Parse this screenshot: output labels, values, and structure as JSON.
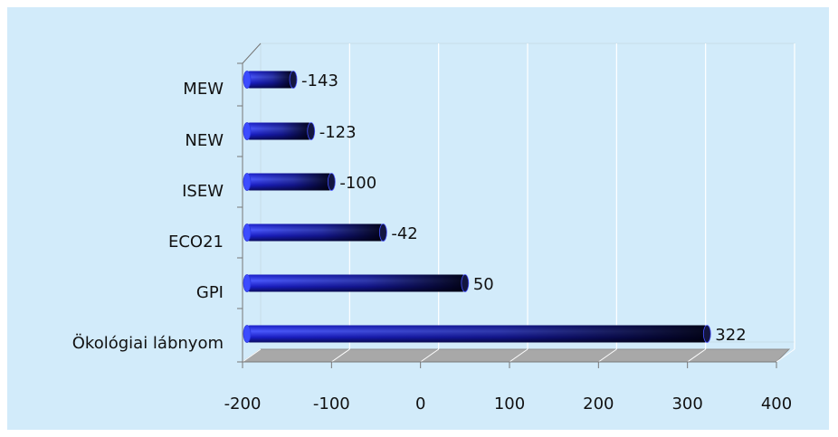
{
  "chart_data": {
    "type": "bar",
    "orientation": "horizontal",
    "categories": [
      "MEW",
      "NEW",
      "ISEW",
      "ECO21",
      "GPI",
      "Ökológiai lábnyom"
    ],
    "values": [
      -143,
      -123,
      -100,
      -42,
      50,
      322
    ],
    "data_labels": [
      "-143",
      "-123",
      "-100",
      "-42",
      "50",
      "322"
    ],
    "xlim": [
      -200,
      400
    ],
    "xticks": [
      -200,
      -100,
      0,
      100,
      200,
      300,
      400
    ],
    "tick_labels": [
      "-200",
      "-100",
      "0",
      "100",
      "200",
      "300",
      "400"
    ],
    "grid": true,
    "legend": "none",
    "title": "",
    "xlabel": "",
    "ylabel": "",
    "colors": {
      "background": "#d2ebfa",
      "bar_light": "#3c4cff",
      "bar_mid": "#1a1ec8",
      "bar_dark": "#06061e",
      "floor": "#a8a8a8",
      "grid": "#ffffff"
    }
  }
}
